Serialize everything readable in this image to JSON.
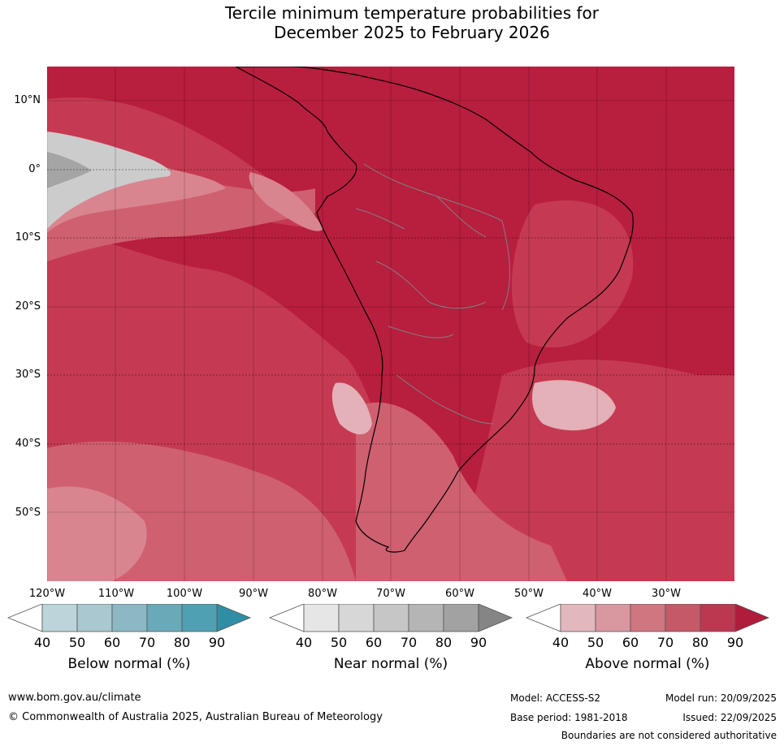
{
  "title_line1": "Tercile minimum temperature probabilities for",
  "title_line2": "December 2025 to February 2026",
  "map": {
    "lat_labels": [
      "10°N",
      "0°",
      "10°S",
      "20°S",
      "30°S",
      "40°S",
      "50°S"
    ],
    "lon_labels": [
      "120°W",
      "110°W",
      "100°W",
      "90°W",
      "80°W",
      "70°W",
      "60°W",
      "50°W",
      "40°W",
      "30°W"
    ],
    "colors": {
      "above_90": "#b81e3e",
      "above_80": "#c53a52",
      "above_70": "#cf6070",
      "above_60": "#d98590",
      "above_50": "#e3b1b7",
      "near_60": "#cccccc",
      "near_80": "#a5a5a5",
      "coast": "#000000",
      "borders": "#808080"
    }
  },
  "colorbars": [
    {
      "title": "Below normal (%)",
      "ticks": [
        "40",
        "50",
        "60",
        "70",
        "80",
        "90"
      ],
      "colors": [
        "#ffffff",
        "#bcd4da",
        "#a9c8cf",
        "#8cb8c4",
        "#6aaab8",
        "#4fa0b2",
        "#2f8ea6"
      ]
    },
    {
      "title": "Near normal (%)",
      "ticks": [
        "40",
        "50",
        "60",
        "70",
        "80",
        "90"
      ],
      "colors": [
        "#ffffff",
        "#e6e6e6",
        "#d7d7d7",
        "#c6c6c6",
        "#b5b5b5",
        "#a2a2a2",
        "#858585"
      ]
    },
    {
      "title": "Above normal (%)",
      "ticks": [
        "40",
        "50",
        "60",
        "70",
        "80",
        "90"
      ],
      "colors": [
        "#ffffff",
        "#e2b8bd",
        "#d9979f",
        "#cf7680",
        "#c65968",
        "#bc3850",
        "#b01c3b"
      ]
    }
  ],
  "footer": {
    "url": "www.bom.gov.au/climate",
    "copyright": "© Commonwealth of Australia 2025, Australian Bureau of Meteorology",
    "model": "Model: ACCESS-S2",
    "model_run": "Model run: 20/09/2025",
    "base_period": "Base period: 1981-2018",
    "issued": "Issued: 22/09/2025",
    "disclaimer": "Boundaries are not considered authoritative"
  }
}
